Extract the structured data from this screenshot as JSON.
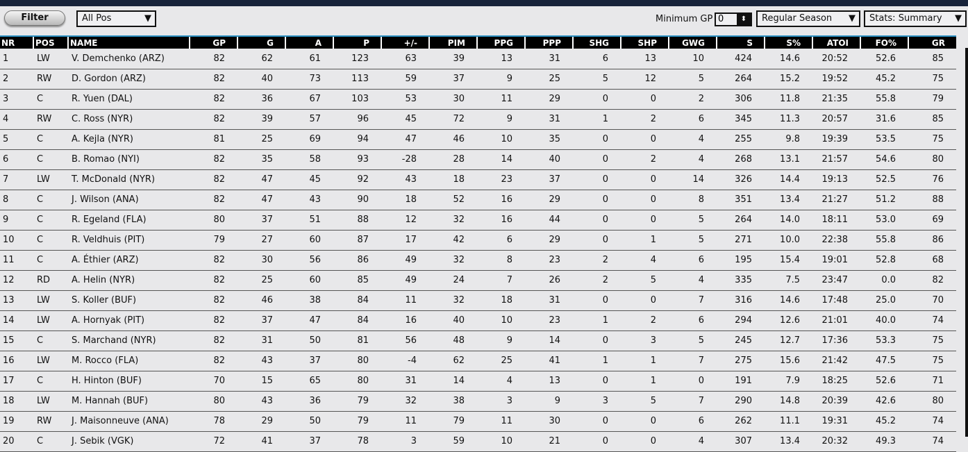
{
  "toolbar": {
    "filter_label": "Filter",
    "position_select": "All Pos",
    "min_gp_label": "Minimum GP",
    "min_gp_value": "0",
    "season_select": "Regular Season",
    "stats_select": "Stats: Summary"
  },
  "columns": [
    "NR",
    "POS",
    "NAME",
    "GP",
    "G",
    "A",
    "P",
    "+/-",
    "PIM",
    "PPG",
    "PPP",
    "SHG",
    "SHP",
    "GWG",
    "S",
    "S%",
    "ATOI",
    "FO%",
    "GR"
  ],
  "rows": [
    [
      "1",
      "LW",
      "V. Demchenko (ARZ)",
      "82",
      "62",
      "61",
      "123",
      "63",
      "39",
      "13",
      "31",
      "6",
      "13",
      "10",
      "424",
      "14.6",
      "20:52",
      "52.6",
      "85"
    ],
    [
      "2",
      "RW",
      "D. Gordon (ARZ)",
      "82",
      "40",
      "73",
      "113",
      "59",
      "37",
      "9",
      "25",
      "5",
      "12",
      "5",
      "264",
      "15.2",
      "19:52",
      "45.2",
      "75"
    ],
    [
      "3",
      "C",
      "R. Yuen (DAL)",
      "82",
      "36",
      "67",
      "103",
      "53",
      "30",
      "11",
      "29",
      "0",
      "0",
      "2",
      "306",
      "11.8",
      "21:35",
      "55.8",
      "79"
    ],
    [
      "4",
      "RW",
      "C. Ross (NYR)",
      "82",
      "39",
      "57",
      "96",
      "45",
      "72",
      "9",
      "31",
      "1",
      "2",
      "6",
      "345",
      "11.3",
      "20:57",
      "31.6",
      "85"
    ],
    [
      "5",
      "C",
      "A. Kejla (NYR)",
      "81",
      "25",
      "69",
      "94",
      "47",
      "46",
      "10",
      "35",
      "0",
      "0",
      "4",
      "255",
      "9.8",
      "19:39",
      "53.5",
      "75"
    ],
    [
      "6",
      "C",
      "B. Romao (NYI)",
      "82",
      "35",
      "58",
      "93",
      "-28",
      "28",
      "14",
      "40",
      "0",
      "2",
      "4",
      "268",
      "13.1",
      "21:57",
      "54.6",
      "80"
    ],
    [
      "7",
      "LW",
      "T. McDonald (NYR)",
      "82",
      "47",
      "45",
      "92",
      "43",
      "18",
      "23",
      "37",
      "0",
      "0",
      "14",
      "326",
      "14.4",
      "19:13",
      "52.5",
      "76"
    ],
    [
      "8",
      "C",
      "J. Wilson (ANA)",
      "82",
      "47",
      "43",
      "90",
      "18",
      "52",
      "16",
      "29",
      "0",
      "0",
      "8",
      "351",
      "13.4",
      "21:27",
      "51.2",
      "88"
    ],
    [
      "9",
      "C",
      "R. Egeland (FLA)",
      "80",
      "37",
      "51",
      "88",
      "12",
      "32",
      "16",
      "44",
      "0",
      "0",
      "5",
      "264",
      "14.0",
      "18:11",
      "53.0",
      "69"
    ],
    [
      "10",
      "C",
      "R. Veldhuis (PIT)",
      "79",
      "27",
      "60",
      "87",
      "17",
      "42",
      "6",
      "29",
      "0",
      "1",
      "5",
      "271",
      "10.0",
      "22:38",
      "55.8",
      "86"
    ],
    [
      "11",
      "C",
      "A. Éthier (ARZ)",
      "82",
      "30",
      "56",
      "86",
      "49",
      "32",
      "8",
      "23",
      "2",
      "4",
      "6",
      "195",
      "15.4",
      "19:01",
      "52.8",
      "68"
    ],
    [
      "12",
      "RD",
      "A. Helin (NYR)",
      "82",
      "25",
      "60",
      "85",
      "49",
      "24",
      "7",
      "26",
      "2",
      "5",
      "4",
      "335",
      "7.5",
      "23:47",
      "0.0",
      "82"
    ],
    [
      "13",
      "LW",
      "S. Koller (BUF)",
      "82",
      "46",
      "38",
      "84",
      "11",
      "32",
      "18",
      "31",
      "0",
      "0",
      "7",
      "316",
      "14.6",
      "17:48",
      "25.0",
      "70"
    ],
    [
      "14",
      "LW",
      "A. Hornyak (PIT)",
      "82",
      "37",
      "47",
      "84",
      "16",
      "40",
      "10",
      "23",
      "1",
      "2",
      "6",
      "294",
      "12.6",
      "21:01",
      "40.0",
      "74"
    ],
    [
      "15",
      "C",
      "S. Marchand (NYR)",
      "82",
      "31",
      "50",
      "81",
      "56",
      "48",
      "9",
      "14",
      "0",
      "3",
      "5",
      "245",
      "12.7",
      "17:36",
      "53.3",
      "75"
    ],
    [
      "16",
      "LW",
      "M. Rocco (FLA)",
      "82",
      "43",
      "37",
      "80",
      "-4",
      "62",
      "25",
      "41",
      "1",
      "1",
      "7",
      "275",
      "15.6",
      "21:42",
      "47.5",
      "75"
    ],
    [
      "17",
      "C",
      "H. Hinton (BUF)",
      "70",
      "15",
      "65",
      "80",
      "31",
      "14",
      "4",
      "13",
      "0",
      "1",
      "0",
      "191",
      "7.9",
      "18:25",
      "52.6",
      "71"
    ],
    [
      "18",
      "LW",
      "M. Hannah (BUF)",
      "80",
      "43",
      "36",
      "79",
      "32",
      "38",
      "3",
      "9",
      "3",
      "5",
      "7",
      "290",
      "14.8",
      "20:39",
      "42.6",
      "80"
    ],
    [
      "19",
      "RW",
      "J. Maisonneuve (ANA)",
      "78",
      "29",
      "50",
      "79",
      "11",
      "79",
      "11",
      "30",
      "0",
      "0",
      "6",
      "262",
      "11.1",
      "19:31",
      "45.2",
      "74"
    ],
    [
      "20",
      "C",
      "J. Sebik (VGK)",
      "72",
      "41",
      "37",
      "78",
      "3",
      "59",
      "10",
      "21",
      "0",
      "0",
      "4",
      "307",
      "13.4",
      "20:32",
      "49.3",
      "74"
    ]
  ]
}
